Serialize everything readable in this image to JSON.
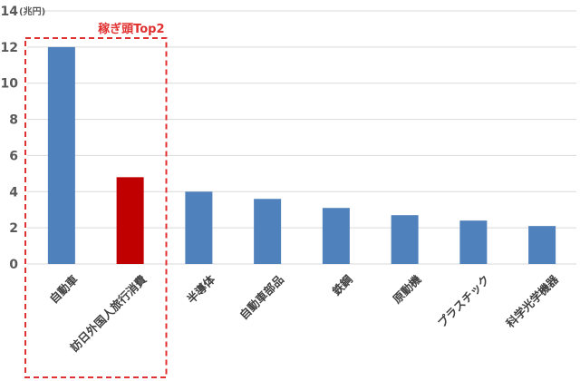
{
  "chart_data": {
    "type": "bar",
    "title": "",
    "ylabel": "",
    "xlabel": "",
    "y_unit": "(兆円)",
    "ylim": [
      0,
      14
    ],
    "yticks": [
      0,
      2,
      4,
      6,
      8,
      10,
      12,
      14
    ],
    "grid": true,
    "categories": [
      "自動車",
      "訪日外国人旅行消費",
      "半導体",
      "自動車部品",
      "鉄鋼",
      "原動機",
      "プラスチック",
      "科学光学機器"
    ],
    "values": [
      12.0,
      4.8,
      4.0,
      3.6,
      3.1,
      2.7,
      2.4,
      2.1
    ],
    "highlight_index": 1,
    "annotation": {
      "text": "稼ぎ頭Top2",
      "covers_categories": [
        0,
        1
      ]
    }
  },
  "colors": {
    "bar": "#4f81bd",
    "highlight_bar": "#c00000",
    "annotation": "#e03030",
    "gridline": "#d9d9d9",
    "text": "#595959"
  }
}
